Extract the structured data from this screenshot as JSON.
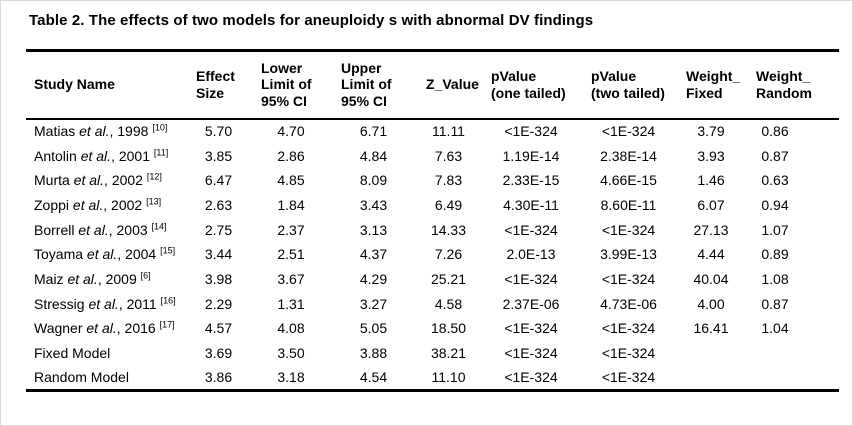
{
  "title": "Table 2. The effects of two models for aneuploidy s with abnormal DV findings",
  "table": {
    "headers": [
      "Study Name",
      "Effect\nSize",
      "Lower\nLimit of\n95% CI",
      "Upper\nLimit of\n95% CI",
      "Z_Value",
      "pValue\n(one tailed)",
      "pValue\n(two tailed)",
      "Weight_\nFixed",
      "Weight_\nRandom"
    ],
    "rows": [
      {
        "study": {
          "text_before": "Matias ",
          "italic": "et al.",
          "text_after": ", 1998 ",
          "ref": "[10]"
        },
        "values": [
          "5.70",
          "4.70",
          "6.71",
          "11.11",
          "<1E-324",
          "<1E-324",
          "3.79",
          "0.86"
        ]
      },
      {
        "study": {
          "text_before": "Antolin ",
          "italic": "et al.",
          "text_after": ", 2001 ",
          "ref": "[11]"
        },
        "values": [
          "3.85",
          "2.86",
          "4.84",
          "7.63",
          "1.19E-14",
          "2.38E-14",
          "3.93",
          "0.87"
        ]
      },
      {
        "study": {
          "text_before": "Murta ",
          "italic": "et al.",
          "text_after": ", 2002 ",
          "ref": "[12]"
        },
        "values": [
          "6.47",
          "4.85",
          "8.09",
          "7.83",
          "2.33E-15",
          "4.66E-15",
          "1.46",
          "0.63"
        ]
      },
      {
        "study": {
          "text_before": "Zoppi ",
          "italic": "et al.",
          "text_after": ", 2002 ",
          "ref": "[13]"
        },
        "values": [
          "2.63",
          "1.84",
          "3.43",
          "6.49",
          "4.30E-11",
          "8.60E-11",
          "6.07",
          "0.94"
        ]
      },
      {
        "study": {
          "text_before": "Borrell ",
          "italic": "et al.",
          "text_after": ", 2003 ",
          "ref": "[14]"
        },
        "values": [
          "2.75",
          "2.37",
          "3.13",
          "14.33",
          "<1E-324",
          "<1E-324",
          "27.13",
          "1.07"
        ]
      },
      {
        "study": {
          "text_before": "Toyama ",
          "italic": "et al.",
          "text_after": ", 2004 ",
          "ref": "[15]"
        },
        "values": [
          "3.44",
          "2.51",
          "4.37",
          "7.26",
          "2.0E-13",
          "3.99E-13",
          "4.44",
          "0.89"
        ]
      },
      {
        "study": {
          "text_before": "Maiz ",
          "italic": "et al.",
          "text_after": ", 2009 ",
          "ref": "[6]"
        },
        "values": [
          "3.98",
          "3.67",
          "4.29",
          "25.21",
          "<1E-324",
          "<1E-324",
          "40.04",
          "1.08"
        ]
      },
      {
        "study": {
          "text_before": "Stressig ",
          "italic": "et al.",
          "text_after": ", 2011 ",
          "ref": "[16]"
        },
        "values": [
          "2.29",
          "1.31",
          "3.27",
          "4.58",
          "2.37E-06",
          "4.73E-06",
          "4.00",
          "0.87"
        ]
      },
      {
        "study": {
          "text_before": "Wagner ",
          "italic": "et al.",
          "text_after": ", 2016 ",
          "ref": "[17]"
        },
        "values": [
          "4.57",
          "4.08",
          "5.05",
          "18.50",
          "<1E-324",
          "<1E-324",
          "16.41",
          "1.04"
        ]
      },
      {
        "study": {
          "text_before": "Fixed Model",
          "italic": "",
          "text_after": "",
          "ref": ""
        },
        "values": [
          "3.69",
          "3.50",
          "3.88",
          "38.21",
          "<1E-324",
          "<1E-324",
          "",
          ""
        ]
      },
      {
        "study": {
          "text_before": "Random Model",
          "italic": "",
          "text_after": "",
          "ref": ""
        },
        "values": [
          "3.86",
          "3.18",
          "4.54",
          "11.10",
          "<1E-324",
          "<1E-324",
          "",
          ""
        ]
      }
    ]
  }
}
